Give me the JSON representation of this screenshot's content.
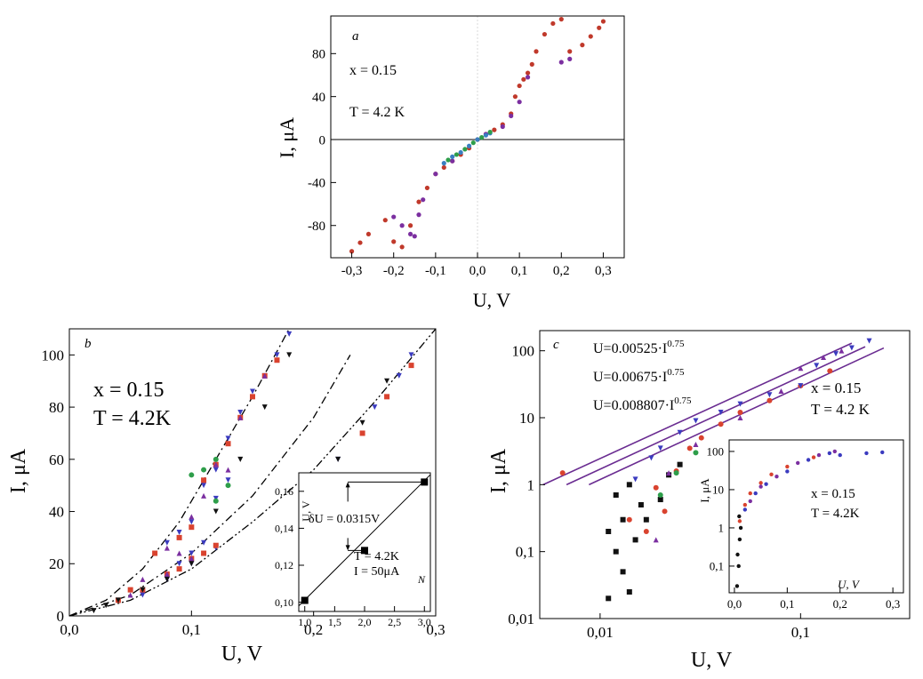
{
  "chart_data": [
    {
      "type": "scatter",
      "panel_label": "a",
      "xlabel": "U, V",
      "ylabel": "I, μA",
      "xlim": [
        -0.35,
        0.35
      ],
      "ylim": [
        -110,
        115
      ],
      "xticks": [
        -0.3,
        -0.2,
        -0.1,
        0.0,
        0.1,
        0.2,
        0.3
      ],
      "xtick_labels": [
        "-0,3",
        "-0,2",
        "-0,1",
        "0,0",
        "0,1",
        "0,2",
        "0,3"
      ],
      "yticks": [
        -80,
        -40,
        0,
        40,
        80
      ],
      "ytick_labels": [
        "-80",
        "-40",
        "0",
        "40",
        "80"
      ],
      "annotations": [
        "x = 0.15",
        "T = 4.2 K"
      ],
      "zero_line": true,
      "series": [
        {
          "color": "#c0392b",
          "x": [
            -0.32,
            -0.3,
            -0.28,
            -0.26,
            -0.22,
            -0.2,
            -0.18,
            -0.16,
            -0.14,
            -0.12,
            -0.1,
            -0.08,
            -0.06,
            -0.04,
            -0.02,
            0.0,
            0.02,
            0.04,
            0.06,
            0.08,
            0.09,
            0.1,
            0.11,
            0.12,
            0.13,
            0.14,
            0.16,
            0.18,
            0.2,
            0.22,
            0.25,
            0.27,
            0.29,
            0.3
          ],
          "y": [
            -112,
            -104,
            -96,
            -88,
            -75,
            -95,
            -100,
            -80,
            -58,
            -45,
            -32,
            -26,
            -20,
            -14,
            -8,
            0,
            5,
            9,
            14,
            24,
            40,
            50,
            56,
            62,
            70,
            82,
            98,
            108,
            112,
            82,
            88,
            96,
            104,
            110
          ]
        },
        {
          "color": "#7b2fa0",
          "x": [
            -0.2,
            -0.18,
            -0.16,
            -0.15,
            -0.14,
            -0.13,
            -0.1,
            -0.06,
            0.02,
            0.06,
            0.08,
            0.1,
            0.12,
            0.2,
            0.22
          ],
          "y": [
            -72,
            -80,
            -88,
            -90,
            -70,
            -56,
            -32,
            -20,
            5,
            12,
            22,
            35,
            58,
            72,
            75
          ]
        },
        {
          "color": "#3a7fc1",
          "x": [
            -0.08,
            -0.06,
            -0.04,
            -0.02,
            0.0,
            0.02,
            0.03
          ],
          "y": [
            -22,
            -16,
            -12,
            -6,
            0,
            4,
            6
          ]
        },
        {
          "color": "#2e9e4a",
          "x": [
            -0.07,
            -0.05,
            -0.03,
            -0.01,
            0.01,
            0.03
          ],
          "y": [
            -19,
            -14,
            -9,
            -3,
            2,
            7
          ]
        }
      ]
    },
    {
      "type": "scatter",
      "panel_label": "b",
      "xlabel": "U, V",
      "ylabel": "I, μA",
      "xlim": [
        0.0,
        0.3
      ],
      "ylim": [
        0,
        110
      ],
      "xticks": [
        0.0,
        0.1,
        0.2,
        0.3
      ],
      "xtick_labels": [
        "0,0",
        "0,1",
        "0,2",
        "0,3"
      ],
      "yticks": [
        0,
        20,
        40,
        60,
        80,
        100
      ],
      "ytick_labels": [
        "0",
        "20",
        "40",
        "60",
        "80",
        "100"
      ],
      "annotations": [
        "x = 0.15",
        "T = 4.2K"
      ],
      "series": [
        {
          "color": "#3b3bbf",
          "marker": "triangle-down",
          "x": [
            0.08,
            0.09,
            0.1,
            0.11,
            0.12,
            0.13,
            0.14,
            0.15,
            0.16,
            0.17,
            0.18,
            0.08,
            0.09,
            0.1,
            0.11,
            0.12,
            0.13,
            0.06,
            0.08,
            0.1,
            0.12,
            0.19,
            0.22,
            0.25,
            0.27,
            0.28
          ],
          "y": [
            28,
            32,
            36,
            50,
            56,
            68,
            78,
            86,
            92,
            100,
            108,
            14,
            20,
            24,
            28,
            45,
            52,
            8,
            14,
            20,
            26,
            42,
            60,
            80,
            92,
            100
          ]
        },
        {
          "color": "#d9432f",
          "marker": "square",
          "x": [
            0.07,
            0.09,
            0.1,
            0.11,
            0.12,
            0.13,
            0.14,
            0.15,
            0.16,
            0.17,
            0.05,
            0.08,
            0.1,
            0.12,
            0.04,
            0.06,
            0.09,
            0.11,
            0.2,
            0.24,
            0.26,
            0.28
          ],
          "y": [
            24,
            30,
            34,
            52,
            58,
            66,
            76,
            84,
            92,
            98,
            10,
            16,
            22,
            27,
            6,
            10,
            18,
            24,
            44,
            70,
            84,
            96
          ]
        },
        {
          "color": "#7b2fa0",
          "marker": "triangle-up",
          "x": [
            0.08,
            0.1,
            0.12,
            0.14,
            0.16,
            0.06,
            0.09,
            0.11,
            0.13,
            0.05,
            0.08,
            0.1
          ],
          "y": [
            26,
            38,
            58,
            76,
            92,
            14,
            24,
            46,
            56,
            8,
            16,
            22
          ]
        },
        {
          "color": "#2e9e4a",
          "marker": "circle",
          "x": [
            0.1,
            0.11,
            0.12,
            0.12,
            0.13
          ],
          "y": [
            54,
            56,
            60,
            44,
            50
          ]
        },
        {
          "color": "#111111",
          "marker": "triangle-down",
          "x": [
            0.02,
            0.03,
            0.04,
            0.06,
            0.08,
            0.1,
            0.12,
            0.14,
            0.16,
            0.18,
            0.2,
            0.22,
            0.24,
            0.26
          ],
          "y": [
            2,
            4,
            6,
            10,
            14,
            20,
            40,
            60,
            80,
            100,
            44,
            60,
            74,
            90
          ]
        }
      ],
      "fit_curves": [
        {
          "style": "dash-dot",
          "x": [
            0.0,
            0.03,
            0.06,
            0.09,
            0.12,
            0.15,
            0.18
          ],
          "y": [
            0,
            6,
            18,
            36,
            60,
            84,
            110
          ]
        },
        {
          "style": "dash-dot",
          "x": [
            0.0,
            0.05,
            0.1,
            0.15,
            0.2,
            0.23
          ],
          "y": [
            0,
            8,
            24,
            46,
            76,
            100
          ]
        },
        {
          "style": "dash-dot-dot",
          "x": [
            0.0,
            0.05,
            0.1,
            0.15,
            0.2,
            0.25,
            0.3
          ],
          "y": [
            0,
            6,
            18,
            36,
            56,
            82,
            110
          ]
        }
      ],
      "inset": {
        "type": "line",
        "xlabel": "N",
        "ylabel": "U, V",
        "xlim": [
          0.9,
          3.1
        ],
        "ylim": [
          0.095,
          0.17
        ],
        "xticks": [
          1.0,
          1.5,
          2.0,
          2.5,
          3.0
        ],
        "xtick_labels": [
          "1,0",
          "1,5",
          "2,0",
          "2,5",
          "3,0"
        ],
        "yticks": [
          0.1,
          0.12,
          0.14,
          0.16
        ],
        "ytick_labels": [
          "0,10",
          "0,12",
          "0,14",
          "0,16"
        ],
        "points": {
          "x": [
            1,
            2,
            3
          ],
          "y": [
            0.101,
            0.128,
            0.165
          ]
        },
        "fit_line": {
          "x": [
            0.9,
            3.1
          ],
          "y": [
            0.098,
            0.169
          ]
        },
        "annotations": [
          "δU = 0.0315V",
          "T = 4.2K",
          "I = 50μA"
        ]
      }
    },
    {
      "type": "scatter",
      "panel_label": "c",
      "xlabel": "U, V",
      "ylabel": "I, μA",
      "xscale": "log",
      "yscale": "log",
      "xlim": [
        0.005,
        0.35
      ],
      "ylim": [
        0.01,
        200
      ],
      "xticks": [
        0.01,
        0.1
      ],
      "xtick_labels": [
        "0,01",
        "0,1"
      ],
      "yticks": [
        0.01,
        0.1,
        1,
        10,
        100
      ],
      "ytick_labels": [
        "0,01",
        "0,1",
        "1",
        "10",
        "100"
      ],
      "annotations": [
        "x = 0.15",
        "T = 4.2 K"
      ],
      "fit_labels": [
        "U=0.00525·I",
        "U=0.00675·I",
        "U=0.008807·I"
      ],
      "fit_exponent": "0.75",
      "fit_lines": [
        {
          "x": [
            0.0052,
            0.18
          ],
          "y": [
            1.0,
            130
          ]
        },
        {
          "x": [
            0.0068,
            0.21
          ],
          "y": [
            1.0,
            115
          ]
        },
        {
          "x": [
            0.0088,
            0.26
          ],
          "y": [
            1.0,
            110
          ]
        }
      ],
      "series": [
        {
          "color": "#111111",
          "marker": "square",
          "x": [
            0.011,
            0.012,
            0.013,
            0.014,
            0.015,
            0.016,
            0.012,
            0.014,
            0.011,
            0.013,
            0.017,
            0.02,
            0.022,
            0.025
          ],
          "y": [
            0.02,
            0.1,
            0.3,
            0.025,
            0.15,
            0.5,
            0.7,
            1.0,
            0.2,
            0.05,
            0.3,
            0.6,
            1.4,
            2.0
          ]
        },
        {
          "color": "#d9432f",
          "marker": "circle",
          "x": [
            0.0065,
            0.014,
            0.017,
            0.019,
            0.021,
            0.024,
            0.028,
            0.032,
            0.04,
            0.05,
            0.07,
            0.1,
            0.14
          ],
          "y": [
            1.5,
            0.3,
            0.2,
            0.9,
            0.4,
            1.6,
            3.5,
            5,
            8,
            12,
            18,
            30,
            50
          ]
        },
        {
          "color": "#3b3bbf",
          "marker": "triangle-down",
          "x": [
            0.015,
            0.018,
            0.02,
            0.025,
            0.03,
            0.04,
            0.05,
            0.07,
            0.1,
            0.12,
            0.15,
            0.18,
            0.22
          ],
          "y": [
            1.2,
            2.5,
            3.5,
            6,
            9,
            12,
            16,
            22,
            30,
            60,
            90,
            110,
            140
          ]
        },
        {
          "color": "#7b2fa0",
          "marker": "triangle-up",
          "x": [
            0.019,
            0.022,
            0.03,
            0.05,
            0.08,
            0.1,
            0.13,
            0.16
          ],
          "y": [
            0.15,
            1.5,
            4,
            10,
            25,
            55,
            80,
            100
          ]
        },
        {
          "color": "#2e9e4a",
          "marker": "circle",
          "x": [
            0.02,
            0.024,
            0.03
          ],
          "y": [
            0.7,
            1.5,
            3.0
          ]
        }
      ],
      "inset": {
        "type": "scatter",
        "xlabel": "U, V",
        "ylabel": "I, μA",
        "yscale": "log",
        "xlim": [
          -0.01,
          0.32
        ],
        "ylim": [
          0.02,
          200
        ],
        "xticks": [
          0.0,
          0.1,
          0.2,
          0.3
        ],
        "xtick_labels": [
          "0,0",
          "0,1",
          "0,2",
          "0,3"
        ],
        "yticks": [
          0.1,
          1,
          10,
          100
        ],
        "ytick_labels": [
          "0,1",
          "1",
          "10",
          "100"
        ],
        "annotations": [
          "x = 0.15",
          "T = 4.2K"
        ],
        "series": [
          {
            "color": "#111111",
            "x": [
              0.005,
              0.008,
              0.01,
              0.012,
              0.006,
              0.009
            ],
            "y": [
              0.03,
              0.1,
              0.5,
              1.0,
              0.2,
              2.0
            ]
          },
          {
            "color": "#d9432f",
            "x": [
              0.01,
              0.02,
              0.03,
              0.05,
              0.07,
              0.1,
              0.15
            ],
            "y": [
              1.5,
              4,
              8,
              15,
              25,
              40,
              70
            ]
          },
          {
            "color": "#3b3bbf",
            "x": [
              0.02,
              0.04,
              0.06,
              0.1,
              0.14,
              0.18,
              0.2,
              0.25,
              0.28
            ],
            "y": [
              3,
              8,
              14,
              30,
              60,
              90,
              80,
              90,
              95
            ]
          },
          {
            "color": "#7b2fa0",
            "x": [
              0.03,
              0.05,
              0.08,
              0.12,
              0.16,
              0.19
            ],
            "y": [
              5,
              12,
              22,
              50,
              80,
              100
            ]
          }
        ]
      }
    }
  ]
}
